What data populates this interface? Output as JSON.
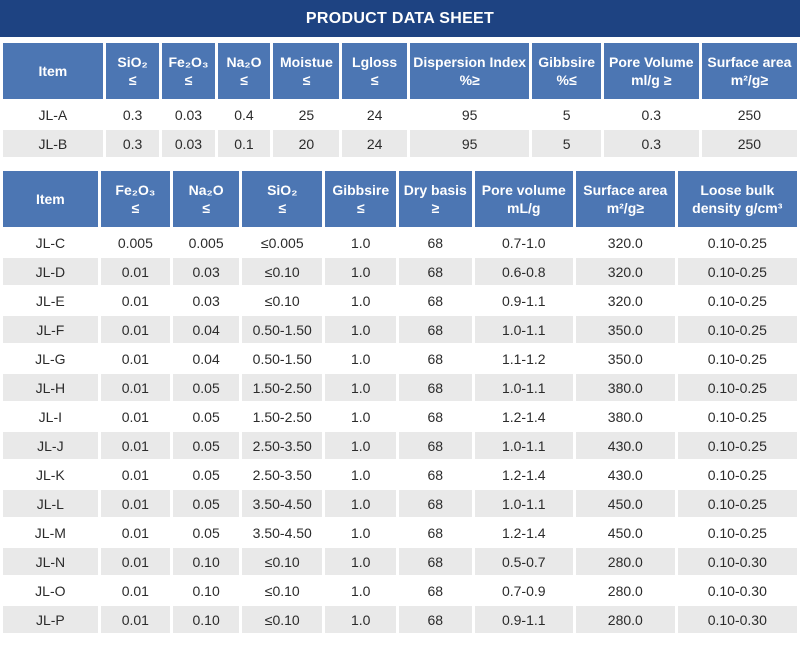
{
  "title": "PRODUCT DATA SHEET",
  "colors": {
    "title_bar": "#1e4382",
    "header_cell": "#4c76b3",
    "alt_row": "#e9e9e9",
    "header_text": "#ffffff",
    "body_text": "#2b2b2b"
  },
  "table1": {
    "headers": [
      [
        "Item"
      ],
      [
        "SiO₂",
        "≤"
      ],
      [
        "Fe₂O₃",
        "≤"
      ],
      [
        "Na₂O",
        "≤"
      ],
      [
        "Moistue",
        "≤"
      ],
      [
        "Lgloss",
        "≤"
      ],
      [
        "Dispersion Index",
        "%≥"
      ],
      [
        "Gibbsire",
        "%≤"
      ],
      [
        "Pore Volume",
        "ml/g ≥"
      ],
      [
        "Surface area",
        "m²/g≥"
      ]
    ],
    "rows": [
      [
        "JL-A",
        "0.3",
        "0.03",
        "0.4",
        "25",
        "24",
        "95",
        "5",
        "0.3",
        "250"
      ],
      [
        "JL-B",
        "0.3",
        "0.03",
        "0.1",
        "20",
        "24",
        "95",
        "5",
        "0.3",
        "250"
      ]
    ]
  },
  "table2": {
    "headers": [
      [
        "Item"
      ],
      [
        "Fe₂O₃",
        "≤"
      ],
      [
        "Na₂O",
        "≤"
      ],
      [
        "SiO₂",
        "≤"
      ],
      [
        "Gibbsire",
        "≤"
      ],
      [
        "Dry basis",
        "≥"
      ],
      [
        "Pore volume",
        "mL/g"
      ],
      [
        "Surface area",
        "m²/g≥"
      ],
      [
        "Loose bulk",
        "density g/cm³"
      ]
    ],
    "rows": [
      [
        "JL-C",
        "0.005",
        "0.005",
        "≤0.005",
        "1.0",
        "68",
        "0.7-1.0",
        "320.0",
        "0.10-0.25"
      ],
      [
        "JL-D",
        "0.01",
        "0.03",
        "≤0.10",
        "1.0",
        "68",
        "0.6-0.8",
        "320.0",
        "0.10-0.25"
      ],
      [
        "JL-E",
        "0.01",
        "0.03",
        "≤0.10",
        "1.0",
        "68",
        "0.9-1.1",
        "320.0",
        "0.10-0.25"
      ],
      [
        "JL-F",
        "0.01",
        "0.04",
        "0.50-1.50",
        "1.0",
        "68",
        "1.0-1.1",
        "350.0",
        "0.10-0.25"
      ],
      [
        "JL-G",
        "0.01",
        "0.04",
        "0.50-1.50",
        "1.0",
        "68",
        "1.1-1.2",
        "350.0",
        "0.10-0.25"
      ],
      [
        "JL-H",
        "0.01",
        "0.05",
        "1.50-2.50",
        "1.0",
        "68",
        "1.0-1.1",
        "380.0",
        "0.10-0.25"
      ],
      [
        "JL-I",
        "0.01",
        "0.05",
        "1.50-2.50",
        "1.0",
        "68",
        "1.2-1.4",
        "380.0",
        "0.10-0.25"
      ],
      [
        "JL-J",
        "0.01",
        "0.05",
        "2.50-3.50",
        "1.0",
        "68",
        "1.0-1.1",
        "430.0",
        "0.10-0.25"
      ],
      [
        "JL-K",
        "0.01",
        "0.05",
        "2.50-3.50",
        "1.0",
        "68",
        "1.2-1.4",
        "430.0",
        "0.10-0.25"
      ],
      [
        "JL-L",
        "0.01",
        "0.05",
        "3.50-4.50",
        "1.0",
        "68",
        "1.0-1.1",
        "450.0",
        "0.10-0.25"
      ],
      [
        "JL-M",
        "0.01",
        "0.05",
        "3.50-4.50",
        "1.0",
        "68",
        "1.2-1.4",
        "450.0",
        "0.10-0.25"
      ],
      [
        "JL-N",
        "0.01",
        "0.10",
        "≤0.10",
        "1.0",
        "68",
        "0.5-0.7",
        "280.0",
        "0.10-0.30"
      ],
      [
        "JL-O",
        "0.01",
        "0.10",
        "≤0.10",
        "1.0",
        "68",
        "0.7-0.9",
        "280.0",
        "0.10-0.30"
      ],
      [
        "JL-P",
        "0.01",
        "0.10",
        "≤0.10",
        "1.0",
        "68",
        "0.9-1.1",
        "280.0",
        "0.10-0.30"
      ]
    ]
  }
}
